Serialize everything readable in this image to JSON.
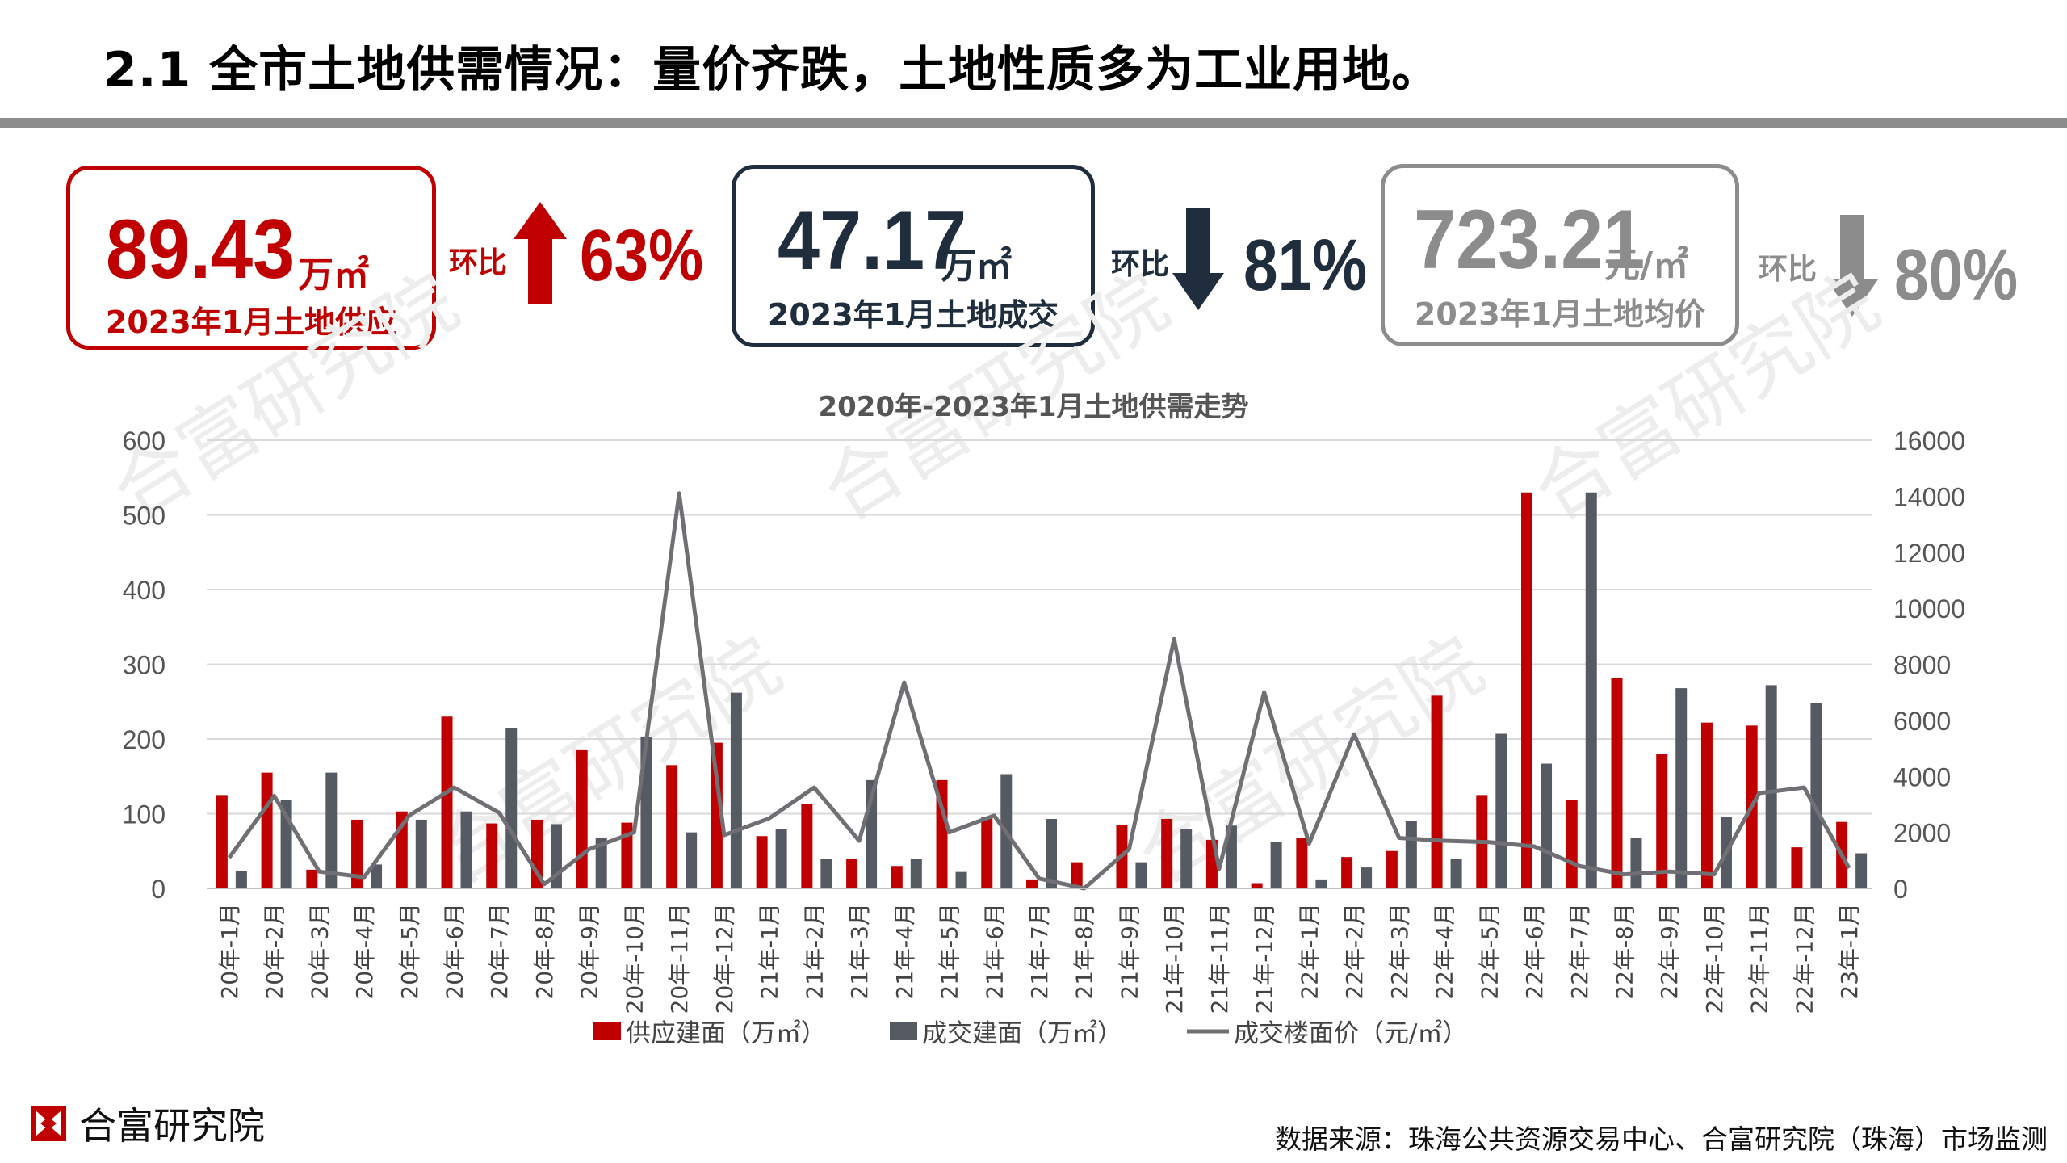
{
  "title": "2.1 全市土地供需情况：量价齐跌，土地性质多为工业用地。",
  "stats": {
    "supply": {
      "value": "89.43",
      "unit": "万㎡",
      "caption": "2023年1月土地供应",
      "mom_label": "环比",
      "mom_pct": "63%",
      "direction": "up"
    },
    "deal": {
      "value": "47.17",
      "unit": "万㎡",
      "caption": "2023年1月土地成交",
      "mom_label": "环比",
      "mom_pct": "81%",
      "direction": "down"
    },
    "price": {
      "value": "723.21",
      "unit": "元/㎡",
      "caption": "2023年1月土地均价",
      "mom_label": "环比",
      "mom_pct": "80%",
      "direction": "down"
    }
  },
  "colors": {
    "supply": "#c00000",
    "deal": "#565a62",
    "price_line": "#6f6f74",
    "dark_navy": "#1f2d3d",
    "gray": "#8c8c8c"
  },
  "chart_data": {
    "type": "bar",
    "title": "2020年-2023年1月土地供需走势",
    "categories": [
      "20年-1月",
      "20年-2月",
      "20年-3月",
      "20年-4月",
      "20年-5月",
      "20年-6月",
      "20年-7月",
      "20年-8月",
      "20年-9月",
      "20年-10月",
      "20年-11月",
      "20年-12月",
      "21年-1月",
      "21年-2月",
      "21年-3月",
      "21年-4月",
      "21年-5月",
      "21年-6月",
      "21年-7月",
      "21年-8月",
      "21年-9月",
      "21年-10月",
      "21年-11月",
      "21年-12月",
      "22年-1月",
      "22年-2月",
      "22年-3月",
      "22年-4月",
      "22年-5月",
      "22年-6月",
      "22年-7月",
      "22年-8月",
      "22年-9月",
      "22年-10月",
      "22年-11月",
      "22年-12月",
      "23年-1月"
    ],
    "series": [
      {
        "name": "供应建面（万㎡）",
        "type": "bar",
        "axis": "left",
        "values": [
          125,
          155,
          25,
          92,
          103,
          230,
          87,
          92,
          185,
          88,
          165,
          195,
          70,
          113,
          40,
          30,
          145,
          95,
          12,
          35,
          85,
          93,
          65,
          7,
          68,
          42,
          50,
          258,
          125,
          530,
          118,
          282,
          180,
          222,
          218,
          55,
          89
        ]
      },
      {
        "name": "成交建面（万㎡）",
        "type": "bar",
        "axis": "left",
        "values": [
          23,
          118,
          155,
          32,
          92,
          103,
          215,
          86,
          68,
          203,
          75,
          262,
          80,
          40,
          145,
          40,
          22,
          153,
          93,
          0,
          35,
          80,
          84,
          62,
          12,
          28,
          90,
          40,
          207,
          167,
          530,
          68,
          268,
          96,
          272,
          248,
          47
        ]
      },
      {
        "name": "成交楼面价（元/㎡）",
        "type": "line",
        "axis": "right",
        "values": [
          1100,
          3300,
          600,
          400,
          2600,
          3600,
          2700,
          150,
          1400,
          2000,
          14100,
          1900,
          2500,
          3600,
          1700,
          7350,
          2000,
          2600,
          350,
          0,
          1400,
          8900,
          700,
          7000,
          1600,
          5500,
          1800,
          1700,
          1650,
          1500,
          800,
          500,
          600,
          500,
          3400,
          3600,
          723
        ]
      }
    ],
    "ylim_left": [
      0,
      600
    ],
    "yticks_left": [
      0,
      100,
      200,
      300,
      400,
      500,
      600
    ],
    "ylim_right": [
      0,
      16000
    ],
    "yticks_right": [
      0,
      2000,
      4000,
      6000,
      8000,
      10000,
      12000,
      14000,
      16000
    ],
    "grid": true,
    "legend_position": "bottom"
  },
  "watermark": "合富研究院",
  "footer": {
    "brand": "合富研究院",
    "source": "数据来源：珠海公共资源交易中心、合富研究院（珠海）市场监测"
  }
}
